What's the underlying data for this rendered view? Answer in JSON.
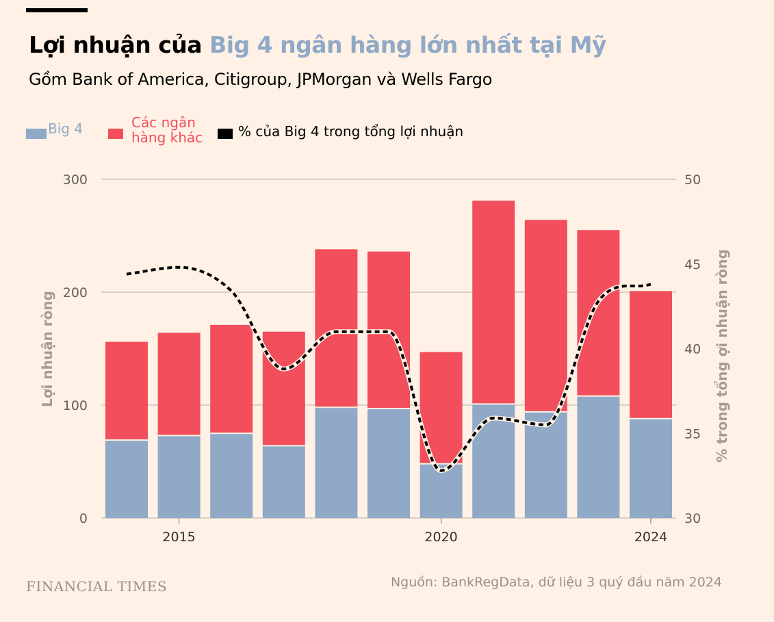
{
  "title": {
    "prefix": "Lợi nhuận của ",
    "highlight": "Big 4 ngân hàng lớn nhất tại Mỹ"
  },
  "subtitle": "Gồm Bank of America, Citigroup, JPMorgan và Wells Fargo",
  "legend": [
    {
      "label": "Big 4",
      "color": "#8fa9c7"
    },
    {
      "label_line1": "Các ngân",
      "label_line2": "hàng khác",
      "color": "#f24e5c"
    },
    {
      "label": "% của Big 4 trong tổng lợi nhuận",
      "color": "#000000"
    }
  ],
  "source": "Nguồn: BankRegData, dữ liệu 3 quý đầu năm 2024",
  "logo": "FINANCIAL TIMES",
  "chart_data": {
    "type": "bar",
    "stacked": true,
    "x": [
      2014,
      2015,
      2016,
      2017,
      2018,
      2019,
      2020,
      2021,
      2022,
      2023,
      2024
    ],
    "x_tick_labels": [
      "2015",
      "2020",
      "2024"
    ],
    "x_ticks": [
      2015,
      2020,
      2024
    ],
    "ylabel": "Lợi nhuận ròng",
    "ylim": [
      0,
      300
    ],
    "y_ticks": [
      "0",
      "100",
      "200",
      "300"
    ],
    "y2label": "% trong tổng ợi nhuận ròng",
    "y2lim": [
      30,
      50
    ],
    "y2_ticks": [
      "30",
      "35",
      "40",
      "45",
      "50"
    ],
    "grid": true,
    "legend_position": "top-left",
    "series": [
      {
        "name": "Big 4",
        "type": "bar",
        "color": "#8fa9c7",
        "values": [
          69,
          73,
          75,
          64,
          98,
          97,
          48,
          101,
          94,
          108,
          88
        ]
      },
      {
        "name": "Các ngân hàng khác",
        "type": "bar",
        "color": "#f24e5c",
        "values": [
          87,
          91,
          96,
          101,
          140,
          139,
          99,
          180,
          170,
          147,
          113
        ]
      },
      {
        "name": "% của Big 4 trong tổng lợi nhuận",
        "type": "line",
        "axis": "right",
        "style": "dashed",
        "color": "#000000",
        "values": [
          44.4,
          44.8,
          43.4,
          38.8,
          41.0,
          41.0,
          32.8,
          35.9,
          35.5,
          42.8,
          43.8
        ]
      }
    ]
  }
}
